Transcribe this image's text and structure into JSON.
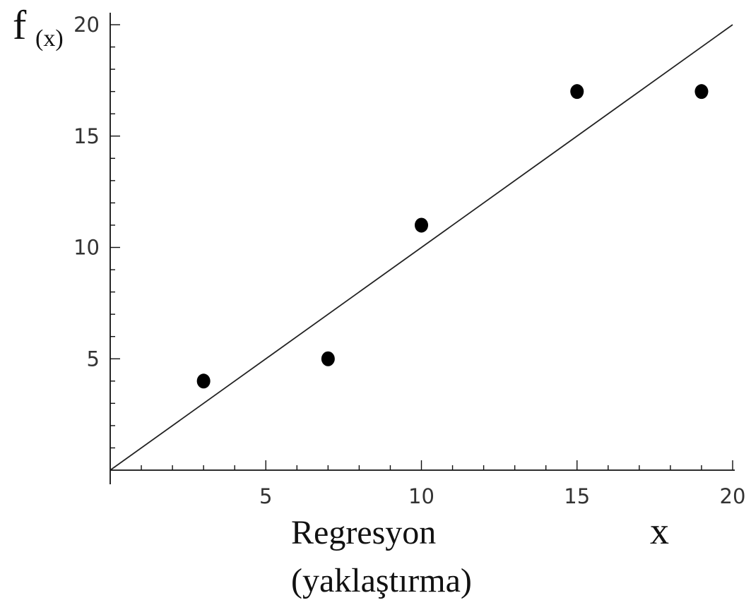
{
  "chart_data": {
    "type": "scatter",
    "ylabel_main": "f",
    "ylabel_sub": "(x)",
    "xlabel": "x",
    "caption_line1": "Regresyon",
    "caption_line2": "(yaklaştırma)",
    "xlim": [
      0,
      20
    ],
    "ylim": [
      0,
      20
    ],
    "x_ticks": [
      5,
      10,
      15,
      20
    ],
    "y_ticks": [
      5,
      10,
      15,
      20
    ],
    "minor_tick_step": 1,
    "points": [
      {
        "x": 3,
        "y": 4
      },
      {
        "x": 7,
        "y": 5
      },
      {
        "x": 10,
        "y": 11
      },
      {
        "x": 15,
        "y": 17
      },
      {
        "x": 19,
        "y": 17
      }
    ],
    "fit_line": [
      {
        "x": 0,
        "y": 0
      },
      {
        "x": 20,
        "y": 20
      }
    ],
    "grid": false,
    "colors": {
      "axis": "#111111",
      "line": "#222222",
      "point": "#000000"
    }
  }
}
